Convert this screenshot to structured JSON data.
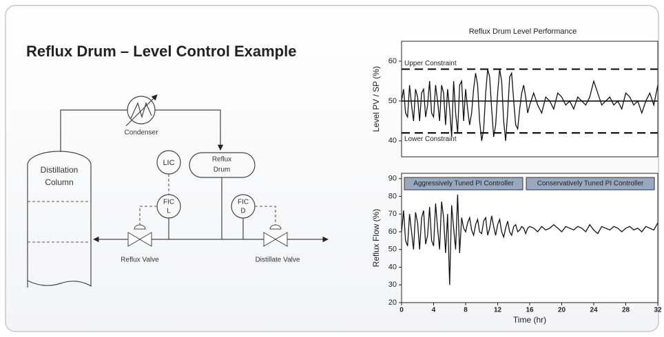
{
  "title": "Reflux Drum – Level Control Example",
  "diagram": {
    "column": [
      "Distillation",
      "Column"
    ],
    "condenser": "Condenser",
    "drum": [
      "Reflux",
      "Drum"
    ],
    "lic": "LIC",
    "fic_l": [
      "FIC",
      "L"
    ],
    "fic_d": [
      "FIC",
      "D"
    ],
    "reflux_valve": "Reflux Valve",
    "distillate_valve": "Distillate Valve"
  },
  "chart_data": [
    {
      "type": "line",
      "title": "Reflux Drum Level Performance",
      "ylabel": "Level PV / SP (%)",
      "xlim": [
        0,
        32
      ],
      "ylim": [
        36,
        65
      ],
      "yticks": [
        40,
        50,
        60
      ],
      "reference_lines": [
        {
          "value": 58,
          "style": "dashed",
          "label": "Upper Constraint"
        },
        {
          "value": 50,
          "style": "solid"
        },
        {
          "value": 42,
          "style": "dashed",
          "label": "Lower Constraint"
        }
      ],
      "x": [
        0,
        0.25,
        0.5,
        0.75,
        1,
        1.25,
        1.5,
        1.75,
        2,
        2.25,
        2.5,
        2.75,
        3,
        3.25,
        3.5,
        3.75,
        4,
        4.25,
        4.5,
        4.75,
        5,
        5.25,
        5.5,
        5.75,
        6,
        6.25,
        6.5,
        6.75,
        7,
        7.25,
        7.5,
        7.75,
        8,
        8.25,
        8.5,
        8.75,
        9,
        9.25,
        9.5,
        9.75,
        10,
        10.25,
        10.5,
        10.75,
        11,
        11.25,
        11.5,
        11.75,
        12,
        12.25,
        12.5,
        12.75,
        13,
        13.25,
        13.5,
        13.75,
        14,
        14.25,
        14.5,
        14.75,
        15,
        15.25,
        15.5,
        15.75,
        16,
        16.5,
        17,
        17.5,
        18,
        18.5,
        19,
        19.5,
        20,
        20.5,
        21,
        21.5,
        22,
        22.5,
        23,
        23.5,
        24,
        24.5,
        25,
        25.5,
        26,
        26.5,
        27,
        27.5,
        28,
        28.5,
        29,
        29.5,
        30,
        30.5,
        31,
        31.5,
        32
      ],
      "series": [
        {
          "color": "#111111",
          "values": [
            50,
            53,
            47,
            46,
            54,
            49,
            45,
            53,
            51,
            45,
            52,
            53,
            46,
            49,
            55,
            47,
            46,
            54,
            50,
            45,
            54,
            52,
            44,
            53,
            48,
            41,
            55,
            47,
            42,
            54,
            55,
            45,
            53,
            48,
            44,
            47,
            53,
            57,
            54,
            45,
            40,
            43,
            52,
            58,
            56,
            48,
            41,
            44,
            52,
            58,
            55,
            45,
            40,
            47,
            56,
            57,
            50,
            44,
            43,
            48,
            52,
            54,
            51,
            47,
            49,
            52,
            49,
            47,
            51,
            50,
            48,
            52,
            51,
            49,
            50,
            48,
            51,
            50,
            49,
            51,
            55,
            52,
            49,
            50,
            51,
            49,
            50,
            48,
            52,
            51,
            49,
            50,
            47,
            50,
            52,
            49,
            54
          ]
        }
      ]
    },
    {
      "type": "line",
      "xlabel": "Time (hr)",
      "ylabel": "Reflux Flow (%)",
      "xlim": [
        0,
        32
      ],
      "xticks": [
        0,
        4,
        8,
        12,
        16,
        20,
        24,
        28,
        32
      ],
      "ylim": [
        20,
        93
      ],
      "yticks": [
        20,
        30,
        40,
        50,
        60,
        70,
        80,
        90
      ],
      "annotations": [
        "Aggressively Tuned PI Controller",
        "Conservatively Tuned PI Controller"
      ],
      "x": [
        0,
        0.25,
        0.5,
        0.75,
        1,
        1.25,
        1.5,
        1.75,
        2,
        2.25,
        2.5,
        2.75,
        3,
        3.25,
        3.5,
        3.75,
        4,
        4.25,
        4.5,
        4.75,
        5,
        5.25,
        5.5,
        5.75,
        6,
        6.25,
        6.5,
        6.75,
        7,
        7.25,
        7.5,
        7.75,
        8,
        8.25,
        8.5,
        8.75,
        9,
        9.25,
        9.5,
        9.75,
        10,
        10.25,
        10.5,
        10.75,
        11,
        11.25,
        11.5,
        11.75,
        12,
        12.25,
        12.5,
        12.75,
        13,
        13.25,
        13.5,
        13.75,
        14,
        14.25,
        14.5,
        14.75,
        15,
        15.25,
        15.5,
        15.75,
        16,
        16.5,
        17,
        17.5,
        18,
        18.5,
        19,
        19.5,
        20,
        20.5,
        21,
        21.5,
        22,
        22.5,
        23,
        23.5,
        24,
        24.5,
        25,
        25.5,
        26,
        26.5,
        27,
        27.5,
        28,
        28.5,
        29,
        29.5,
        30,
        30.5,
        31,
        31.5,
        32
      ],
      "series": [
        {
          "color": "#111111",
          "values": [
            60,
            72,
            55,
            52,
            70,
            60,
            50,
            71,
            65,
            50,
            68,
            72,
            53,
            58,
            74,
            55,
            52,
            76,
            62,
            50,
            77,
            68,
            48,
            70,
            30,
            75,
            62,
            50,
            81,
            48,
            68,
            62,
            60,
            65,
            68,
            61,
            58,
            64,
            67,
            60,
            59,
            66,
            68,
            58,
            62,
            69,
            63,
            58,
            64,
            67,
            60,
            57,
            62,
            66,
            60,
            58,
            63,
            64,
            60,
            61,
            63,
            62,
            59,
            62,
            63,
            62,
            60,
            63,
            61,
            62,
            64,
            62,
            60,
            63,
            62,
            61,
            63,
            62,
            60,
            64,
            61,
            59,
            63,
            62,
            61,
            63,
            62,
            60,
            62,
            63,
            61,
            62,
            60,
            63,
            62,
            61,
            65
          ]
        }
      ]
    }
  ]
}
